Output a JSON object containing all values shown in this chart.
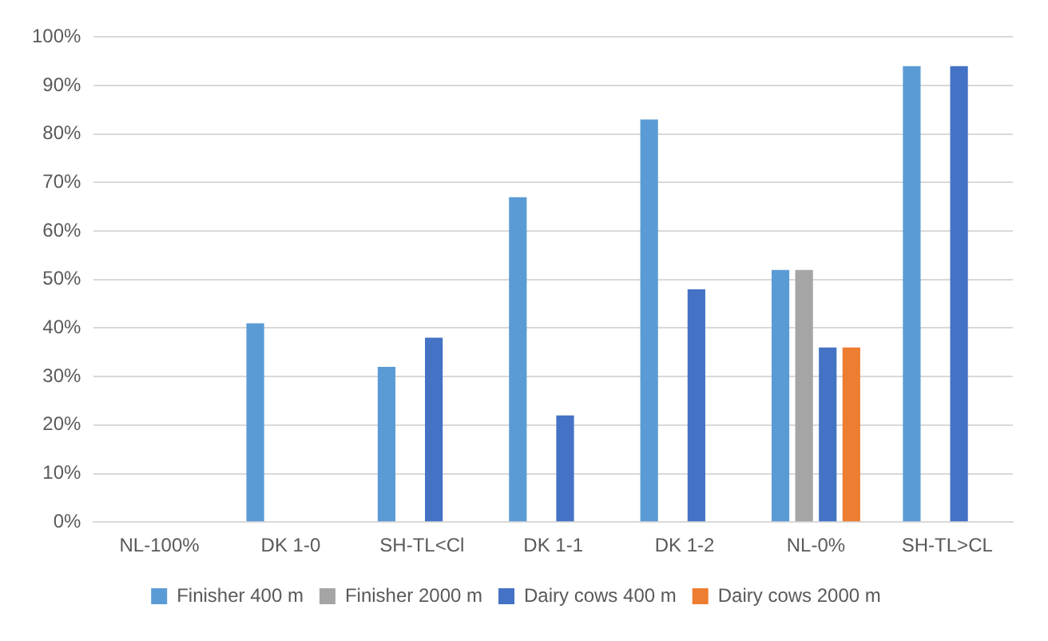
{
  "chart_data": {
    "type": "bar",
    "categories": [
      "NL-100%",
      "DK 1-0",
      "SH-TL<Cl",
      "DK 1-1",
      "DK 1-2",
      "NL-0%",
      "SH-TL>CL"
    ],
    "series": [
      {
        "name": "Finisher 400 m",
        "color": "#5b9bd5",
        "values": [
          null,
          41,
          32,
          67,
          83,
          52,
          94
        ]
      },
      {
        "name": "Finisher 2000 m",
        "color": "#a5a5a5",
        "values": [
          null,
          null,
          null,
          null,
          null,
          52,
          null
        ]
      },
      {
        "name": "Dairy cows 400 m",
        "color": "#4472c4",
        "values": [
          null,
          null,
          38,
          22,
          48,
          36,
          94
        ]
      },
      {
        "name": "Dairy cows 2000 m",
        "color": "#ed7d31",
        "values": [
          null,
          null,
          null,
          null,
          null,
          36,
          null
        ]
      }
    ],
    "ylim": [
      0,
      100
    ],
    "yticks": [
      {
        "value": 0,
        "label": "0%"
      },
      {
        "value": 10,
        "label": "10%"
      },
      {
        "value": 20,
        "label": "20%"
      },
      {
        "value": 30,
        "label": "30%"
      },
      {
        "value": 40,
        "label": "40%"
      },
      {
        "value": 50,
        "label": "50%"
      },
      {
        "value": 60,
        "label": "60%"
      },
      {
        "value": 70,
        "label": "70%"
      },
      {
        "value": 80,
        "label": "80%"
      },
      {
        "value": 90,
        "label": "90%"
      },
      {
        "value": 100,
        "label": "100%"
      }
    ],
    "grid": "y",
    "legend": "bottom"
  }
}
